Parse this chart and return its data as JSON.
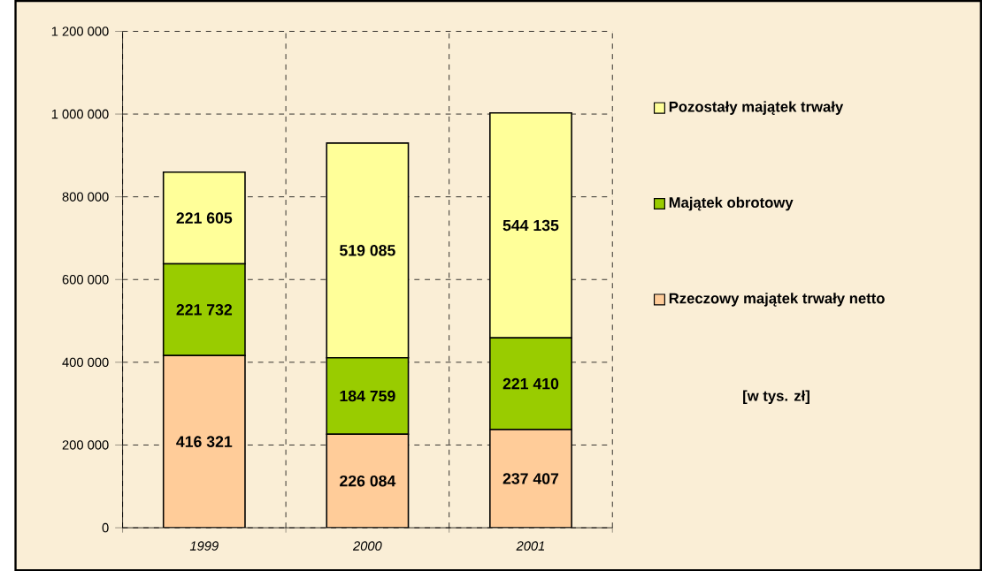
{
  "chart_data": {
    "type": "bar",
    "stacked": true,
    "categories": [
      "1999",
      "2000",
      "2001"
    ],
    "series": [
      {
        "name": "Rzeczowy majątek trwały netto",
        "color": "#ffcc99",
        "values": [
          416321,
          226084,
          237407
        ],
        "value_labels": [
          "416 321",
          "226 084",
          "237 407"
        ]
      },
      {
        "name": "Majątek obrotowy",
        "color": "#99cc00",
        "values": [
          221732,
          184759,
          221410
        ],
        "value_labels": [
          "221 732",
          "184 759",
          "221 410"
        ]
      },
      {
        "name": "Pozostały majątek trwały",
        "color": "#ffff99",
        "values": [
          221605,
          519085,
          544135
        ],
        "value_labels": [
          "221 605",
          "519 085",
          "544 135"
        ]
      }
    ],
    "ylim": [
      0,
      1200000
    ],
    "yticks": [
      0,
      {
        "value": 200000,
        "label": "200 000"
      },
      {
        "value": 400000,
        "label": "400 000"
      },
      {
        "value": 600000,
        "label": "600 000"
      },
      {
        "value": 800000,
        "label": "800 000"
      },
      {
        "value": 1000000,
        "label": "1 000 000"
      },
      {
        "value": 1200000,
        "label": "1 200 000"
      }
    ],
    "grid": true,
    "legend": "right",
    "annotations": [
      "[w tys. zł]"
    ]
  }
}
